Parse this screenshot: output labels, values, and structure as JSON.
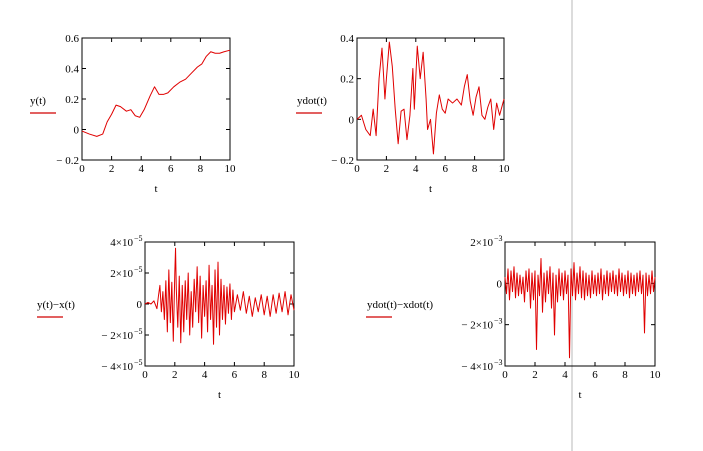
{
  "colors": {
    "trace": "#e00000",
    "label_underline": "#d00000",
    "cursor": "#b8b8b8"
  },
  "chart_data": [
    {
      "type": "line",
      "xlabel": "t",
      "ylabel": "y(t)",
      "xlim": [
        0,
        10
      ],
      "ylim": [
        -0.2,
        0.6
      ],
      "grid": false,
      "xticks": [
        0,
        2,
        4,
        6,
        8,
        10
      ],
      "xtick_labels": [
        "0",
        "2",
        "4",
        "6",
        "8",
        "10"
      ],
      "yticks": [
        -0.2,
        0,
        0.2,
        0.4,
        0.6
      ],
      "ytick_labels": [
        "− 0.2",
        "0",
        "0.2",
        "0.4",
        "0.6"
      ],
      "series": [
        {
          "x": [
            0,
            0.5,
            1,
            1.4,
            1.7,
            2.0,
            2.3,
            2.6,
            3.0,
            3.3,
            3.6,
            3.9,
            4.2,
            4.6,
            4.9,
            5.2,
            5.5,
            5.8,
            6.2,
            6.6,
            7.0,
            7.4,
            7.8,
            8.1,
            8.4,
            8.7,
            9.0,
            9.3,
            9.6,
            10
          ],
          "y": [
            -0.01,
            -0.03,
            -0.045,
            -0.03,
            0.05,
            0.1,
            0.16,
            0.15,
            0.12,
            0.13,
            0.09,
            0.08,
            0.13,
            0.22,
            0.28,
            0.23,
            0.23,
            0.24,
            0.28,
            0.31,
            0.33,
            0.37,
            0.41,
            0.43,
            0.48,
            0.51,
            0.5,
            0.5,
            0.51,
            0.52
          ]
        }
      ]
    },
    {
      "type": "line",
      "xlabel": "t",
      "ylabel": "ydot(t)",
      "xlim": [
        0,
        10
      ],
      "ylim": [
        -0.2,
        0.4
      ],
      "grid": false,
      "xticks": [
        0,
        2,
        4,
        6,
        8,
        10
      ],
      "xtick_labels": [
        "0",
        "2",
        "4",
        "6",
        "8",
        "10"
      ],
      "yticks": [
        -0.2,
        0,
        0.2,
        0.4
      ],
      "ytick_labels": [
        "− 0.2",
        "0",
        "0.2",
        "0.4"
      ],
      "series": [
        {
          "x": [
            0,
            0.3,
            0.6,
            0.9,
            1.1,
            1.3,
            1.5,
            1.7,
            1.9,
            2.0,
            2.2,
            2.4,
            2.6,
            2.8,
            3.0,
            3.2,
            3.4,
            3.6,
            3.8,
            3.9,
            4.1,
            4.3,
            4.5,
            4.7,
            4.8,
            5.0,
            5.2,
            5.4,
            5.6,
            5.8,
            6.0,
            6.2,
            6.5,
            6.8,
            7.1,
            7.3,
            7.5,
            7.7,
            7.9,
            8.1,
            8.3,
            8.5,
            8.7,
            8.9,
            9.1,
            9.3,
            9.5,
            9.7,
            10
          ],
          "y": [
            0.0,
            0.02,
            -0.05,
            -0.08,
            0.05,
            -0.08,
            0.2,
            0.35,
            0.1,
            0.2,
            0.38,
            0.26,
            0.05,
            -0.12,
            0.04,
            0.05,
            -0.1,
            0.02,
            0.25,
            0.05,
            0.36,
            0.2,
            0.33,
            0.1,
            -0.05,
            0.0,
            -0.17,
            0.03,
            0.12,
            0.05,
            0.03,
            0.1,
            0.08,
            0.1,
            0.07,
            0.16,
            0.22,
            0.09,
            0.02,
            0.11,
            0.16,
            0.02,
            0.0,
            0.06,
            0.1,
            -0.05,
            0.08,
            0.02,
            0.1
          ]
        }
      ]
    },
    {
      "type": "line",
      "xlabel": "t",
      "ylabel": "y(t)−x(t)",
      "xlim": [
        0,
        10
      ],
      "ylim": [
        -4e-05,
        4e-05
      ],
      "grid": false,
      "xticks": [
        0,
        2,
        4,
        6,
        8,
        10
      ],
      "xtick_labels": [
        "0",
        "2",
        "4",
        "6",
        "8",
        "10"
      ],
      "yticks": [
        -4e-05,
        -2e-05,
        0,
        2e-05,
        4e-05
      ],
      "ytick_labels": [
        "− 4×10",
        "− 2×10",
        "0",
        "2×10",
        "4×10"
      ],
      "ytick_exponents": [
        "−5",
        "−5",
        "",
        "−5",
        "−5"
      ],
      "series": [
        {
          "x": [
            0,
            0.2,
            0.4,
            0.6,
            0.8,
            0.9,
            1.0,
            1.1,
            1.2,
            1.3,
            1.4,
            1.5,
            1.6,
            1.7,
            1.8,
            1.9,
            2.0,
            2.05,
            2.1,
            2.2,
            2.3,
            2.4,
            2.5,
            2.6,
            2.7,
            2.8,
            2.9,
            3.0,
            3.1,
            3.2,
            3.3,
            3.4,
            3.5,
            3.6,
            3.7,
            3.8,
            3.9,
            4.0,
            4.1,
            4.2,
            4.3,
            4.4,
            4.5,
            4.6,
            4.7,
            4.8,
            4.9,
            5.0,
            5.1,
            5.2,
            5.3,
            5.4,
            5.5,
            5.6,
            5.7,
            5.8,
            5.9,
            6.0,
            6.2,
            6.4,
            6.6,
            6.8,
            7.0,
            7.2,
            7.4,
            7.6,
            7.8,
            8.0,
            8.2,
            8.4,
            8.6,
            8.8,
            9.0,
            9.2,
            9.4,
            9.6,
            9.8,
            10
          ],
          "y": [
            0.0,
            1e-06,
            0.0,
            2e-06,
            -3e-06,
            5e-06,
            1.2e-05,
            -5e-06,
            8e-06,
            -1e-05,
            1.5e-05,
            -1.8e-05,
            2.2e-05,
            -1.2e-05,
            1.4e-05,
            -2.4e-05,
            2e-05,
            3.6e-05,
            1e-05,
            -1.5e-05,
            1.8e-05,
            -2.5e-05,
            1.2e-05,
            -1.8e-05,
            1.5e-05,
            -1e-05,
            2e-05,
            -2e-05,
            8e-06,
            -1.5e-05,
            1.6e-05,
            -5e-06,
            2.4e-05,
            -1.2e-05,
            1.8e-05,
            -2.2e-05,
            1.2e-05,
            -8e-06,
            1.5e-05,
            -1.8e-05,
            2.5e-05,
            -1e-05,
            1.2e-05,
            -2.6e-05,
            2.2e-05,
            -1.5e-05,
            2.7e-05,
            -2e-05,
            1.6e-05,
            -1e-05,
            1.2e-05,
            -1.3e-05,
            1.1e-05,
            -6e-06,
            1.3e-05,
            -1e-05,
            9e-06,
            -5e-06,
            6e-06,
            -4e-06,
            8e-06,
            -6e-06,
            5e-06,
            -8e-06,
            4e-06,
            -5e-06,
            6e-06,
            -7e-06,
            5e-06,
            -8e-06,
            6e-06,
            -6e-06,
            7e-06,
            -5e-06,
            8e-06,
            -7e-06,
            6e-06,
            -4e-06
          ]
        }
      ]
    },
    {
      "type": "line",
      "xlabel": "t",
      "ylabel": "ydot(t)−xdot(t)",
      "xlim": [
        0,
        10
      ],
      "ylim": [
        -0.004,
        0.002
      ],
      "grid": false,
      "xticks": [
        0,
        2,
        4,
        6,
        8,
        10
      ],
      "xtick_labels": [
        "0",
        "2",
        "4",
        "6",
        "8",
        "10"
      ],
      "yticks": [
        -0.004,
        -0.002,
        0,
        0.002
      ],
      "ytick_labels": [
        "− 4×10",
        "− 2×10",
        "0",
        "2×10"
      ],
      "ytick_exponents": [
        "−3",
        "−3",
        "",
        "−3"
      ],
      "series": [
        {
          "x": [
            0,
            0.1,
            0.2,
            0.3,
            0.4,
            0.5,
            0.6,
            0.7,
            0.8,
            0.9,
            1.0,
            1.1,
            1.2,
            1.3,
            1.4,
            1.5,
            1.6,
            1.7,
            1.8,
            1.9,
            2.0,
            2.1,
            2.2,
            2.3,
            2.4,
            2.5,
            2.6,
            2.7,
            2.8,
            2.9,
            3.0,
            3.1,
            3.2,
            3.3,
            3.4,
            3.5,
            3.6,
            3.7,
            3.8,
            3.9,
            4.0,
            4.1,
            4.2,
            4.3,
            4.4,
            4.5,
            4.6,
            4.7,
            4.8,
            4.9,
            5.0,
            5.1,
            5.2,
            5.3,
            5.4,
            5.5,
            5.6,
            5.7,
            5.8,
            5.9,
            6.0,
            6.1,
            6.2,
            6.3,
            6.4,
            6.5,
            6.6,
            6.7,
            6.8,
            6.9,
            7.0,
            7.1,
            7.2,
            7.3,
            7.4,
            7.5,
            7.6,
            7.7,
            7.8,
            7.9,
            8.0,
            8.1,
            8.2,
            8.3,
            8.4,
            8.5,
            8.6,
            8.7,
            8.8,
            8.9,
            9.0,
            9.1,
            9.2,
            9.3,
            9.4,
            9.5,
            9.6,
            9.7,
            9.8,
            9.9,
            10
          ],
          "y": [
            0.0003,
            -0.0005,
            0.0007,
            -0.0008,
            0.0006,
            -0.0004,
            0.0008,
            -0.0007,
            0.0005,
            -0.0006,
            0.0004,
            -0.0005,
            0.0003,
            -0.0009,
            0.0006,
            -0.0004,
            0.0007,
            -0.0012,
            0.0005,
            -0.0008,
            0.0006,
            -0.0032,
            0.0004,
            -0.0006,
            0.0012,
            -0.0014,
            0.0005,
            -0.0009,
            0.0006,
            -0.0005,
            0.0008,
            -0.0012,
            0.0005,
            -0.0025,
            0.0004,
            -0.0009,
            0.0007,
            -0.0006,
            0.0005,
            -0.0008,
            0.0006,
            -0.0005,
            0.0004,
            -0.0036,
            0.0007,
            -0.0006,
            0.001,
            -0.0008,
            0.0005,
            -0.0005,
            0.0008,
            -0.0007,
            0.0006,
            -0.0008,
            0.0005,
            -0.0006,
            0.0004,
            -0.0007,
            0.0006,
            -0.0005,
            0.0004,
            -0.0006,
            0.0005,
            -0.0005,
            0.0007,
            -0.0008,
            0.0004,
            -0.0005,
            0.0006,
            -0.0006,
            0.0005,
            -0.0004,
            0.0006,
            -0.0005,
            0.0004,
            -0.0006,
            0.0007,
            -0.0004,
            0.0005,
            -0.0006,
            0.0004,
            -0.0005,
            0.0006,
            -0.0007,
            0.0005,
            -0.0005,
            0.0004,
            -0.0006,
            0.0005,
            -0.0004,
            0.0006,
            -0.0005,
            0.0004,
            -0.0024,
            0.0005,
            -0.0006,
            0.0004,
            -0.0005,
            0.0006,
            -0.0004,
            0.0003
          ]
        }
      ]
    }
  ]
}
